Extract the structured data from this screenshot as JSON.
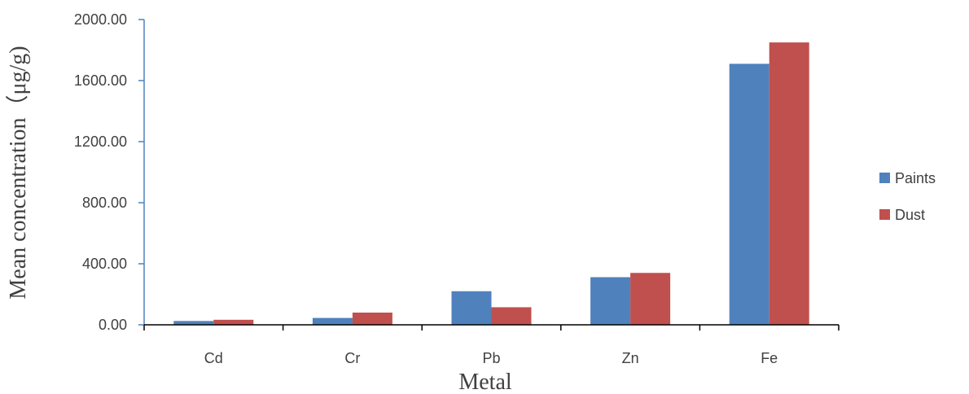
{
  "chart_data": {
    "type": "bar",
    "title": "",
    "xlabel": "Metal",
    "ylabel": "Mean concentration（μg/g)",
    "categories": [
      "Cd",
      "Cr",
      "Pb",
      "Zn",
      "Fe"
    ],
    "series": [
      {
        "name": "Paints",
        "color": "#4F81BD",
        "values": [
          25,
          45,
          220,
          312,
          1710
        ]
      },
      {
        "name": "Dust",
        "color": "#C0504D",
        "values": [
          33,
          80,
          115,
          340,
          1850
        ]
      }
    ],
    "ylim": [
      0,
      2000
    ],
    "yticks": [
      "0.00",
      "400.00",
      "800.00",
      "1200.00",
      "1600.00",
      "2000.00"
    ],
    "grid": false,
    "legend_position": "right"
  }
}
